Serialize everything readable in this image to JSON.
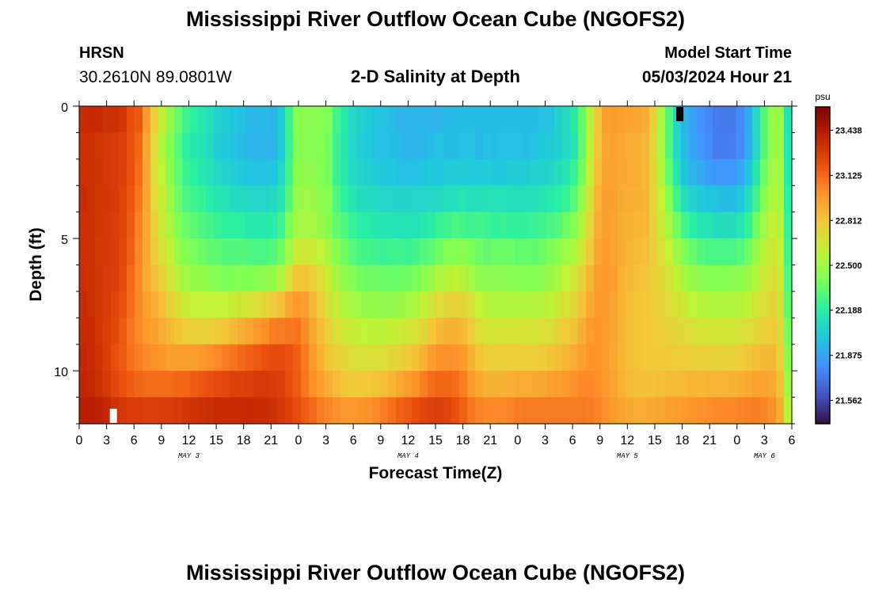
{
  "header": {
    "title": "Mississippi River Outflow Ocean Cube (NGOFS2)",
    "station_name": "HRSN",
    "station_coords": "30.2610N  89.0801W",
    "subtitle": "2-D Salinity at Depth",
    "start_label": "Model Start Time",
    "start_value": "05/03/2024 Hour 21"
  },
  "footer": {
    "title": "Mississippi River Outflow Ocean Cube (NGOFS2)"
  },
  "chart_data": {
    "type": "heatmap",
    "title": "2-D Salinity at Depth",
    "xlabel": "Forecast Time(Z)",
    "ylabel": "Depth (ft)",
    "x_tick_labels": [
      "0",
      "3",
      "6",
      "9",
      "12",
      "15",
      "18",
      "21",
      "0",
      "3",
      "6",
      "9",
      "12",
      "15",
      "18",
      "21",
      "0",
      "3",
      "6",
      "9",
      "12",
      "15",
      "18",
      "21",
      "0",
      "3",
      "6"
    ],
    "date_labels": [
      {
        "label": "MAY 3",
        "hour": 12
      },
      {
        "label": "MAY 4",
        "hour": 36
      },
      {
        "label": "MAY 5",
        "hour": 60
      },
      {
        "label": "MAY 6",
        "hour": 75
      }
    ],
    "x_range_hours": [
      0,
      78
    ],
    "y_ticks": [
      0,
      5,
      10
    ],
    "y_range_ft": [
      0,
      12
    ],
    "depth_rows_ft": [
      0.5,
      1.5,
      2.5,
      3.5,
      4.5,
      5.5,
      6.5,
      7.5,
      8.5,
      9.5,
      10.5,
      11.5
    ],
    "columns": 90,
    "colorbar": {
      "unit": "psu",
      "ticks": [
        23.438,
        23.125,
        22.812,
        22.5,
        22.188,
        21.875,
        21.562
      ],
      "min": 21.4,
      "max": 23.6,
      "colors": [
        "#30123b",
        "#4454c4",
        "#4490fe",
        "#1fc8de",
        "#29efa2",
        "#7eff55",
        "#c3f134",
        "#f1ca3a",
        "#fe922a",
        "#ea4f0d",
        "#be2102",
        "#7a0403"
      ]
    },
    "salinity_psu": [
      [
        23.35,
        23.36,
        23.35,
        23.33,
        23.33,
        23.31,
        23.21,
        23.17,
        22.97,
        22.78,
        22.61,
        22.45,
        22.35,
        22.25,
        22.2,
        22.16,
        22.12,
        22.05,
        22.03,
        22.0,
        21.98,
        21.95,
        21.94,
        21.95,
        21.93,
        22.02,
        22.24,
        22.42,
        22.43,
        22.44,
        22.43,
        22.4,
        22.26,
        22.18,
        22.09,
        22.05,
        22.02,
        21.99,
        21.98,
        21.96,
        21.93,
        21.94,
        21.94,
        21.94,
        21.92,
        21.93,
        21.95,
        21.96,
        21.96,
        21.96,
        21.96,
        21.96,
        21.96,
        21.96,
        21.96,
        21.96,
        21.96,
        21.96,
        21.97,
        21.98,
        22.05,
        22.09,
        22.18,
        22.34,
        22.55,
        22.82,
        22.95,
        22.96,
        22.95,
        22.94,
        22.93,
        22.9,
        22.78,
        22.53,
        22.3,
        22.08,
        21.93,
        21.86,
        21.81,
        21.77,
        21.73,
        21.72,
        21.73,
        21.78,
        21.88,
        22.07,
        22.3,
        22.47,
        22.47,
        22.14
      ],
      [
        23.34,
        23.34,
        23.31,
        23.3,
        23.28,
        23.26,
        23.19,
        23.13,
        22.92,
        22.72,
        22.55,
        22.41,
        22.31,
        22.21,
        22.16,
        22.14,
        22.09,
        22.03,
        22.01,
        21.98,
        21.96,
        21.94,
        21.93,
        21.93,
        21.93,
        22.02,
        22.23,
        22.41,
        22.43,
        22.43,
        22.42,
        22.38,
        22.24,
        22.16,
        22.08,
        22.03,
        22.01,
        21.98,
        21.97,
        21.96,
        21.95,
        21.93,
        21.94,
        21.94,
        21.96,
        21.98,
        21.96,
        21.96,
        21.97,
        21.98,
        21.95,
        21.97,
        21.96,
        21.97,
        21.97,
        21.97,
        21.96,
        21.98,
        22.01,
        22.02,
        22.04,
        22.09,
        22.14,
        22.33,
        22.57,
        22.82,
        22.93,
        22.95,
        22.92,
        22.9,
        22.9,
        22.87,
        22.74,
        22.53,
        22.3,
        22.08,
        21.95,
        21.88,
        21.82,
        21.79,
        21.74,
        21.74,
        21.75,
        21.79,
        21.89,
        22.07,
        22.3,
        22.46,
        22.48,
        22.15
      ],
      [
        23.34,
        23.34,
        23.32,
        23.3,
        23.28,
        23.26,
        23.2,
        23.11,
        22.93,
        22.71,
        22.59,
        22.43,
        22.34,
        22.24,
        22.2,
        22.16,
        22.13,
        22.08,
        22.05,
        22.03,
        22.01,
        21.99,
        21.98,
        21.98,
        21.99,
        22.07,
        22.25,
        22.43,
        22.45,
        22.45,
        22.42,
        22.38,
        22.24,
        22.17,
        22.09,
        22.07,
        22.04,
        22.02,
        22.01,
        22.0,
        21.98,
        21.97,
        21.98,
        21.99,
        22.01,
        22.0,
        22.02,
        22.03,
        22.02,
        22.02,
        22.02,
        22.03,
        22.01,
        22.01,
        22.03,
        22.02,
        22.02,
        22.05,
        22.05,
        22.07,
        22.11,
        22.14,
        22.23,
        22.38,
        22.61,
        22.84,
        22.94,
        22.94,
        22.92,
        22.91,
        22.9,
        22.87,
        22.75,
        22.55,
        22.34,
        22.14,
        21.99,
        21.93,
        21.89,
        21.85,
        21.83,
        21.83,
        21.83,
        21.88,
        21.98,
        22.15,
        22.35,
        22.5,
        22.5,
        22.18
      ],
      [
        23.35,
        23.34,
        23.31,
        23.31,
        23.29,
        23.25,
        23.18,
        23.08,
        22.93,
        22.72,
        22.63,
        22.48,
        22.37,
        22.28,
        22.25,
        22.23,
        22.18,
        22.15,
        22.14,
        22.1,
        22.09,
        22.08,
        22.07,
        22.07,
        22.09,
        22.15,
        22.3,
        22.47,
        22.49,
        22.48,
        22.44,
        22.42,
        22.29,
        22.21,
        22.15,
        22.11,
        22.1,
        22.09,
        22.07,
        22.07,
        22.06,
        22.06,
        22.07,
        22.07,
        22.08,
        22.09,
        22.12,
        22.12,
        22.14,
        22.12,
        22.12,
        22.13,
        22.13,
        22.13,
        22.12,
        22.11,
        22.12,
        22.12,
        22.15,
        22.17,
        22.2,
        22.23,
        22.31,
        22.46,
        22.66,
        22.87,
        22.95,
        22.95,
        22.91,
        22.9,
        22.89,
        22.87,
        22.74,
        22.6,
        22.43,
        22.25,
        22.11,
        22.05,
        22.01,
        21.99,
        21.98,
        21.96,
        21.96,
        22.0,
        22.1,
        22.25,
        22.42,
        22.54,
        22.52,
        22.21
      ],
      [
        23.34,
        23.34,
        23.31,
        23.3,
        23.28,
        23.25,
        23.16,
        23.05,
        22.91,
        22.76,
        22.65,
        22.53,
        22.42,
        22.35,
        22.32,
        22.29,
        22.26,
        22.23,
        22.21,
        22.21,
        22.2,
        22.17,
        22.17,
        22.17,
        22.18,
        22.25,
        22.39,
        22.51,
        22.52,
        22.51,
        22.48,
        22.42,
        22.34,
        22.29,
        22.23,
        22.19,
        22.18,
        22.16,
        22.15,
        22.14,
        22.13,
        22.14,
        22.13,
        22.16,
        22.18,
        22.23,
        22.25,
        22.28,
        22.26,
        22.25,
        22.26,
        22.25,
        22.22,
        22.23,
        22.22,
        22.22,
        22.22,
        22.24,
        22.25,
        22.28,
        22.3,
        22.36,
        22.42,
        22.55,
        22.73,
        22.9,
        22.95,
        22.94,
        22.9,
        22.89,
        22.87,
        22.86,
        22.76,
        22.64,
        22.52,
        22.37,
        22.26,
        22.19,
        22.15,
        22.14,
        22.11,
        22.11,
        22.11,
        22.14,
        22.22,
        22.36,
        22.51,
        22.59,
        22.55,
        22.23
      ],
      [
        23.34,
        23.34,
        23.3,
        23.3,
        23.28,
        23.23,
        23.15,
        23.04,
        22.92,
        22.8,
        22.7,
        22.59,
        22.48,
        22.42,
        22.39,
        22.36,
        22.33,
        22.32,
        22.3,
        22.3,
        22.3,
        22.29,
        22.28,
        22.28,
        22.3,
        22.36,
        22.49,
        22.64,
        22.65,
        22.64,
        22.59,
        22.52,
        22.43,
        22.37,
        22.31,
        22.27,
        22.26,
        22.25,
        22.24,
        22.25,
        22.25,
        22.24,
        22.26,
        22.3,
        22.32,
        22.37,
        22.42,
        22.42,
        22.43,
        22.4,
        22.36,
        22.34,
        22.35,
        22.35,
        22.35,
        22.33,
        22.34,
        22.33,
        22.35,
        22.39,
        22.44,
        22.49,
        22.54,
        22.65,
        22.8,
        22.93,
        22.97,
        22.94,
        22.9,
        22.88,
        22.85,
        22.84,
        22.78,
        22.69,
        22.6,
        22.49,
        22.4,
        22.34,
        22.3,
        22.28,
        22.28,
        22.27,
        22.28,
        22.3,
        22.36,
        22.47,
        22.57,
        22.65,
        22.6,
        22.26
      ],
      [
        23.34,
        23.33,
        23.31,
        23.29,
        23.27,
        23.22,
        23.12,
        23.02,
        22.92,
        22.84,
        22.76,
        22.66,
        22.57,
        22.51,
        22.47,
        22.46,
        22.44,
        22.42,
        22.4,
        22.41,
        22.42,
        22.41,
        22.43,
        22.45,
        22.47,
        22.54,
        22.68,
        22.82,
        22.82,
        22.78,
        22.71,
        22.62,
        22.52,
        22.46,
        22.41,
        22.38,
        22.36,
        22.37,
        22.35,
        22.35,
        22.36,
        22.37,
        22.39,
        22.43,
        22.48,
        22.54,
        22.56,
        22.59,
        22.56,
        22.52,
        22.46,
        22.44,
        22.44,
        22.44,
        22.44,
        22.43,
        22.42,
        22.42,
        22.44,
        22.48,
        22.52,
        22.59,
        22.66,
        22.75,
        22.86,
        22.96,
        22.98,
        22.95,
        22.89,
        22.86,
        22.83,
        22.82,
        22.77,
        22.73,
        22.66,
        22.59,
        22.52,
        22.47,
        22.44,
        22.42,
        22.42,
        22.42,
        22.43,
        22.44,
        22.48,
        22.55,
        22.65,
        22.7,
        22.64,
        22.29
      ],
      [
        23.35,
        23.34,
        23.31,
        23.28,
        23.24,
        23.19,
        23.11,
        23.03,
        22.95,
        22.9,
        22.84,
        22.76,
        22.7,
        22.64,
        22.6,
        22.6,
        22.59,
        22.6,
        22.6,
        22.62,
        22.65,
        22.68,
        22.7,
        22.74,
        22.79,
        22.83,
        22.92,
        22.98,
        22.96,
        22.88,
        22.78,
        22.68,
        22.61,
        22.55,
        22.51,
        22.49,
        22.47,
        22.47,
        22.46,
        22.46,
        22.48,
        22.49,
        22.53,
        22.59,
        22.66,
        22.72,
        22.74,
        22.77,
        22.73,
        22.68,
        22.6,
        22.56,
        22.55,
        22.55,
        22.55,
        22.55,
        22.55,
        22.55,
        22.56,
        22.59,
        22.64,
        22.69,
        22.74,
        22.83,
        22.92,
        22.98,
        22.98,
        22.93,
        22.89,
        22.84,
        22.82,
        22.81,
        22.79,
        22.76,
        22.72,
        22.67,
        22.63,
        22.59,
        22.56,
        22.55,
        22.54,
        22.55,
        22.55,
        22.56,
        22.59,
        22.65,
        22.71,
        22.75,
        22.68,
        22.33
      ],
      [
        23.36,
        23.35,
        23.31,
        23.27,
        23.23,
        23.17,
        23.09,
        23.03,
        22.98,
        22.95,
        22.91,
        22.86,
        22.82,
        22.79,
        22.78,
        22.77,
        22.78,
        22.8,
        22.82,
        22.86,
        22.9,
        22.93,
        22.98,
        23.01,
        23.06,
        23.07,
        23.08,
        23.09,
        23.02,
        22.93,
        22.85,
        22.77,
        22.7,
        22.66,
        22.61,
        22.6,
        22.59,
        22.58,
        22.58,
        22.6,
        22.62,
        22.65,
        22.68,
        22.73,
        22.8,
        22.86,
        22.89,
        22.89,
        22.86,
        22.79,
        22.71,
        22.67,
        22.67,
        22.66,
        22.66,
        22.67,
        22.67,
        22.67,
        22.69,
        22.71,
        22.75,
        22.79,
        22.83,
        22.9,
        22.96,
        22.99,
        22.97,
        22.93,
        22.88,
        22.84,
        22.82,
        22.81,
        22.8,
        22.79,
        22.76,
        22.74,
        22.72,
        22.69,
        22.67,
        22.66,
        22.66,
        22.66,
        22.66,
        22.68,
        22.71,
        22.74,
        22.78,
        22.8,
        22.74,
        22.39
      ],
      [
        23.37,
        23.35,
        23.32,
        23.27,
        23.21,
        23.16,
        23.1,
        23.06,
        23.02,
        23.01,
        22.99,
        22.96,
        22.96,
        22.96,
        22.96,
        22.98,
        23.0,
        23.03,
        23.07,
        23.09,
        23.12,
        23.15,
        23.17,
        23.2,
        23.22,
        23.22,
        23.2,
        23.15,
        23.07,
        22.98,
        22.89,
        22.82,
        22.77,
        22.74,
        22.71,
        22.69,
        22.69,
        22.7,
        22.7,
        22.73,
        22.76,
        22.8,
        22.83,
        22.89,
        22.95,
        23.0,
        23.01,
        23.0,
        22.97,
        22.89,
        22.82,
        22.79,
        22.78,
        22.78,
        22.79,
        22.79,
        22.78,
        22.79,
        22.8,
        22.82,
        22.84,
        22.87,
        22.91,
        22.95,
        22.99,
        22.99,
        22.97,
        22.92,
        22.87,
        22.84,
        22.82,
        22.81,
        22.8,
        22.8,
        22.8,
        22.79,
        22.79,
        22.77,
        22.77,
        22.76,
        22.76,
        22.76,
        22.77,
        22.79,
        22.82,
        22.84,
        22.86,
        22.86,
        22.79,
        22.44
      ],
      [
        23.38,
        23.37,
        23.33,
        23.29,
        23.24,
        23.19,
        23.16,
        23.13,
        23.11,
        23.11,
        23.11,
        23.11,
        23.13,
        23.13,
        23.16,
        23.18,
        23.2,
        23.22,
        23.24,
        23.26,
        23.26,
        23.27,
        23.29,
        23.29,
        23.28,
        23.27,
        23.21,
        23.16,
        23.08,
        23.01,
        22.95,
        22.9,
        22.85,
        22.82,
        22.8,
        22.8,
        22.81,
        22.82,
        22.84,
        22.87,
        22.92,
        22.96,
        23.0,
        23.06,
        23.11,
        23.13,
        23.13,
        23.11,
        23.06,
        22.98,
        22.92,
        22.89,
        22.88,
        22.89,
        22.9,
        22.91,
        22.91,
        22.92,
        22.93,
        22.95,
        22.96,
        22.98,
        23.0,
        23.02,
        23.02,
        23.01,
        22.98,
        22.94,
        22.89,
        22.85,
        22.83,
        22.83,
        22.83,
        22.84,
        22.85,
        22.85,
        22.86,
        22.87,
        22.86,
        22.87,
        22.87,
        22.88,
        22.89,
        22.9,
        22.92,
        22.94,
        22.94,
        22.92,
        22.84,
        22.5
      ],
      [
        23.42,
        23.42,
        23.4,
        23.37,
        23.33,
        23.3,
        23.28,
        23.28,
        23.27,
        23.27,
        23.28,
        23.28,
        23.29,
        23.31,
        23.32,
        23.33,
        23.34,
        23.35,
        23.35,
        23.35,
        23.35,
        23.36,
        23.35,
        23.35,
        23.33,
        23.3,
        23.26,
        23.21,
        23.16,
        23.12,
        23.07,
        23.03,
        23.0,
        22.98,
        22.98,
        22.99,
        23.0,
        23.03,
        23.06,
        23.1,
        23.14,
        23.17,
        23.21,
        23.24,
        23.26,
        23.27,
        23.25,
        23.2,
        23.15,
        23.08,
        23.04,
        23.02,
        23.02,
        23.03,
        23.04,
        23.06,
        23.07,
        23.07,
        23.07,
        23.07,
        23.07,
        23.07,
        23.07,
        23.07,
        23.06,
        23.04,
        23.0,
        22.97,
        22.94,
        22.92,
        22.91,
        22.91,
        22.92,
        22.93,
        22.95,
        22.96,
        22.98,
        22.99,
        23.0,
        23.01,
        23.02,
        23.02,
        23.03,
        23.04,
        23.05,
        23.06,
        23.04,
        23.0,
        22.91,
        22.57
      ]
    ],
    "markers": [
      {
        "color": "#ffffff",
        "hour": 3.7,
        "depth_ft": 11.7
      },
      {
        "color": "#000000",
        "hour": 65.7,
        "depth_ft": 0.3
      }
    ]
  }
}
